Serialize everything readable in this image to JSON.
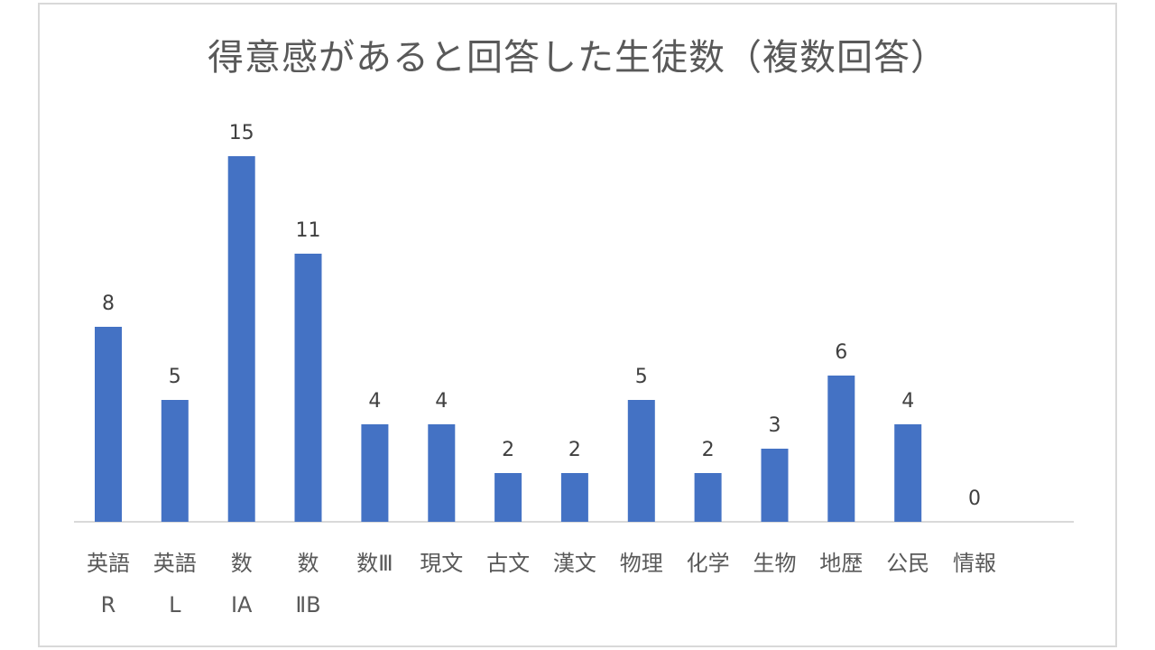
{
  "chart_data": {
    "type": "bar",
    "title": "得意感があると回答した生徒数（複数回答）",
    "categories": [
      [
        "英語",
        "R"
      ],
      [
        "英語",
        "L"
      ],
      [
        "数",
        "ⅠA"
      ],
      [
        "数",
        "ⅡB"
      ],
      [
        "数Ⅲ"
      ],
      [
        "現文"
      ],
      [
        "古文"
      ],
      [
        "漢文"
      ],
      [
        "物理"
      ],
      [
        "化学"
      ],
      [
        "生物"
      ],
      [
        "地歴"
      ],
      [
        "公民"
      ],
      [
        "情報"
      ]
    ],
    "values": [
      8,
      5,
      15,
      11,
      4,
      4,
      2,
      2,
      5,
      2,
      3,
      6,
      4,
      0
    ],
    "ylim": [
      0,
      15
    ],
    "grid": false,
    "legend": "none",
    "data_labels": true,
    "colors": {
      "bar": "#4472c4",
      "axis": "#d9d9d9",
      "title": "#595959",
      "label": "#404040"
    }
  }
}
